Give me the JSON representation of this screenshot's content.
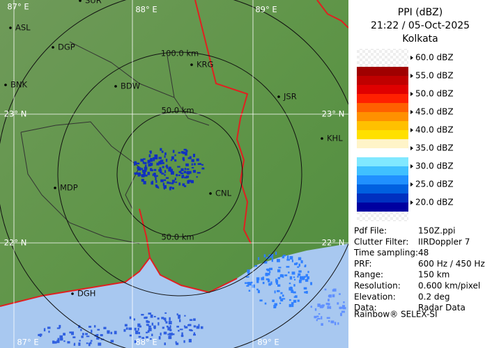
{
  "header": {
    "product": "PPI (dBZ)",
    "datetime": "21:22 / 05-Oct-2025",
    "site": "Kolkata"
  },
  "legend": [
    "60.0 dBZ",
    "55.0 dBZ",
    "50.0 dBZ",
    "45.0 dBZ",
    "40.0 dBZ",
    "35.0 dBZ",
    "30.0 dBZ",
    "25.0 dBZ",
    "20.0 dBZ"
  ],
  "rings": [
    "100.0 km",
    "50.0 km",
    "50.0 km"
  ],
  "gridlabels": [
    "87° E",
    "88° E",
    "89° E",
    "23° N",
    "23° N",
    "22° N",
    "22° N",
    "87° E",
    "88° E",
    "89° E"
  ],
  "cities": [
    "SUR",
    "ASL",
    "DGP",
    "BNK",
    "BDW",
    "KRG",
    "JSR",
    "KHL",
    "MDP",
    "CNL",
    "DGH"
  ],
  "info": [
    {
      "label": "Pdf File:",
      "value": "150Z.ppi"
    },
    {
      "label": "Clutter Filter:",
      "value": "IIRDoppler 7"
    },
    {
      "label": "Time sampling:",
      "value": "48"
    },
    {
      "label": "PRF:",
      "value": "600 Hz / 450 Hz"
    },
    {
      "label": "Range:",
      "value": "150 km"
    },
    {
      "label": "Resolution:",
      "value": "0.600 km/pixel"
    },
    {
      "label": "Elevation:",
      "value": "0.2 deg"
    },
    {
      "label": "Data:",
      "value": "Radar Data"
    }
  ],
  "footer": "Rainbow® SELEX-SI"
}
